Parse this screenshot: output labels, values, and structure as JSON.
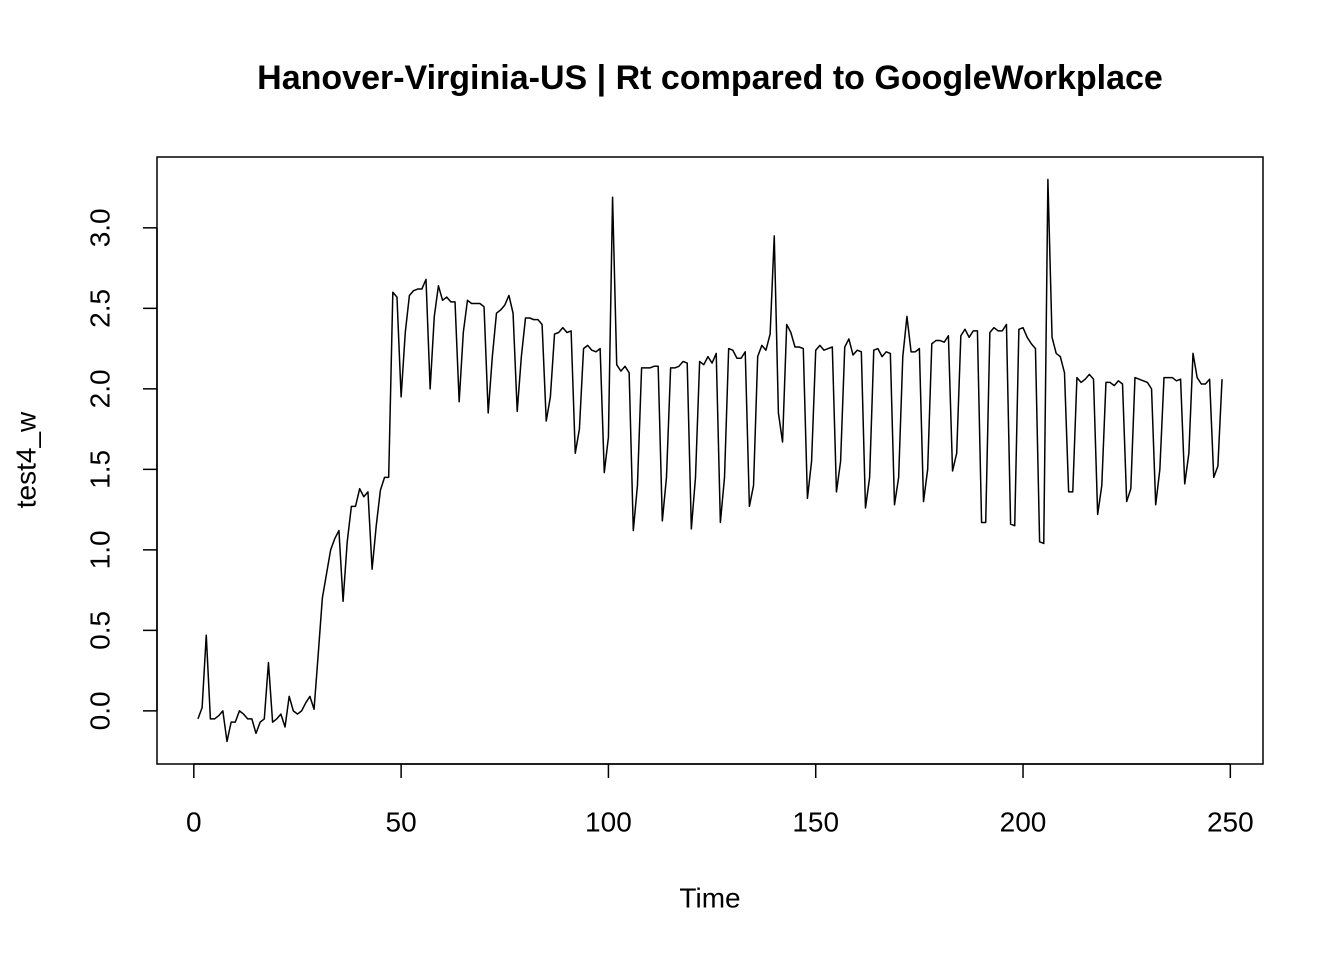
{
  "chart_data": {
    "type": "line",
    "title": "Hanover-Virginia-US | Rt compared to GoogleWorkplace",
    "x_label": "Time",
    "y_label": "test4_w",
    "color": "#000000",
    "xlim": [
      -8.88,
      257.88
    ],
    "ylim": [
      -0.33,
      3.44
    ],
    "xticks": [
      0,
      50,
      100,
      150,
      200,
      250
    ],
    "yticks": [
      {
        "value": 0,
        "label": "0.0"
      },
      0.5,
      {
        "value": 1,
        "label": "1.0"
      },
      1.5,
      {
        "value": 2,
        "label": "2.0"
      },
      2.5,
      {
        "value": 3,
        "label": "3.0"
      }
    ],
    "x": [
      1,
      2,
      3,
      4,
      5,
      6,
      7,
      8,
      9,
      10,
      11,
      12,
      13,
      14,
      15,
      16,
      17,
      18,
      19,
      20,
      21,
      22,
      23,
      24,
      25,
      26,
      27,
      28,
      29,
      30,
      31,
      32,
      33,
      34,
      35,
      36,
      37,
      38,
      39,
      40,
      41,
      42,
      43,
      44,
      45,
      46,
      47,
      48,
      49,
      50,
      51,
      52,
      53,
      54,
      55,
      56,
      57,
      58,
      59,
      60,
      61,
      62,
      63,
      64,
      65,
      66,
      67,
      68,
      69,
      70,
      71,
      72,
      73,
      74,
      75,
      76,
      77,
      78,
      79,
      80,
      81,
      82,
      83,
      84,
      85,
      86,
      87,
      88,
      89,
      90,
      91,
      92,
      93,
      94,
      95,
      96,
      97,
      98,
      99,
      100,
      101,
      102,
      103,
      104,
      105,
      106,
      107,
      108,
      109,
      110,
      111,
      112,
      113,
      114,
      115,
      116,
      117,
      118,
      119,
      120,
      121,
      122,
      123,
      124,
      125,
      126,
      127,
      128,
      129,
      130,
      131,
      132,
      133,
      134,
      135,
      136,
      137,
      138,
      139,
      140,
      141,
      142,
      143,
      144,
      145,
      146,
      147,
      148,
      149,
      150,
      151,
      152,
      153,
      154,
      155,
      156,
      157,
      158,
      159,
      160,
      161,
      162,
      163,
      164,
      165,
      166,
      167,
      168,
      169,
      170,
      171,
      172,
      173,
      174,
      175,
      176,
      177,
      178,
      179,
      180,
      181,
      182,
      183,
      184,
      185,
      186,
      187,
      188,
      189,
      190,
      191,
      192,
      193,
      194,
      195,
      196,
      197,
      198,
      199,
      200,
      201,
      202,
      203,
      204,
      205,
      206,
      207,
      208,
      209,
      210,
      211,
      212,
      213,
      214,
      215,
      216,
      217,
      218,
      219,
      220,
      221,
      222,
      223,
      224,
      225,
      226,
      227,
      228,
      229,
      230,
      231,
      232,
      233,
      234,
      235,
      236,
      237,
      238,
      239,
      240,
      241,
      242,
      243,
      244,
      245,
      246,
      247,
      248
    ],
    "values": [
      -0.05,
      0.02,
      0.47,
      -0.05,
      -0.05,
      -0.03,
      0.0,
      -0.19,
      -0.07,
      -0.07,
      0.0,
      -0.02,
      -0.05,
      -0.05,
      -0.14,
      -0.07,
      -0.05,
      0.3,
      -0.07,
      -0.05,
      -0.02,
      -0.1,
      0.09,
      0.0,
      -0.02,
      0.0,
      0.05,
      0.09,
      0.01,
      0.35,
      0.7,
      0.85,
      1.0,
      1.07,
      1.12,
      0.68,
      1.05,
      1.27,
      1.27,
      1.38,
      1.33,
      1.36,
      0.88,
      1.15,
      1.37,
      1.45,
      1.45,
      2.6,
      2.57,
      1.95,
      2.35,
      2.58,
      2.61,
      2.62,
      2.62,
      2.68,
      2.0,
      2.45,
      2.64,
      2.55,
      2.57,
      2.54,
      2.54,
      1.92,
      2.35,
      2.55,
      2.53,
      2.53,
      2.53,
      2.51,
      1.85,
      2.2,
      2.47,
      2.49,
      2.52,
      2.58,
      2.47,
      1.86,
      2.2,
      2.44,
      2.44,
      2.43,
      2.43,
      2.4,
      1.8,
      1.95,
      2.34,
      2.35,
      2.38,
      2.35,
      2.36,
      1.6,
      1.75,
      2.25,
      2.27,
      2.24,
      2.23,
      2.25,
      1.48,
      1.7,
      3.19,
      2.15,
      2.11,
      2.14,
      2.1,
      1.12,
      1.4,
      2.13,
      2.13,
      2.13,
      2.14,
      2.14,
      1.18,
      1.45,
      2.13,
      2.13,
      2.14,
      2.17,
      2.16,
      1.13,
      1.45,
      2.17,
      2.15,
      2.2,
      2.16,
      2.22,
      1.17,
      1.45,
      2.25,
      2.24,
      2.19,
      2.19,
      2.23,
      1.27,
      1.4,
      2.2,
      2.27,
      2.24,
      2.34,
      2.95,
      1.85,
      1.67,
      2.4,
      2.35,
      2.26,
      2.26,
      2.25,
      1.32,
      1.55,
      2.24,
      2.27,
      2.24,
      2.25,
      2.26,
      1.36,
      1.55,
      2.26,
      2.31,
      2.21,
      2.24,
      2.23,
      1.26,
      1.45,
      2.24,
      2.25,
      2.2,
      2.23,
      2.22,
      1.28,
      1.45,
      2.2,
      2.45,
      2.23,
      2.23,
      2.25,
      1.3,
      1.5,
      2.28,
      2.3,
      2.3,
      2.29,
      2.33,
      1.49,
      1.6,
      2.33,
      2.37,
      2.32,
      2.36,
      2.36,
      1.17,
      1.17,
      2.35,
      2.38,
      2.36,
      2.36,
      2.4,
      1.16,
      1.15,
      2.37,
      2.38,
      2.32,
      2.28,
      2.25,
      1.05,
      1.04,
      3.3,
      2.32,
      2.22,
      2.2,
      2.1,
      1.36,
      1.36,
      2.07,
      2.04,
      2.06,
      2.09,
      2.06,
      1.22,
      1.4,
      2.04,
      2.04,
      2.02,
      2.05,
      2.03,
      1.3,
      1.38,
      2.07,
      2.06,
      2.05,
      2.04,
      2.0,
      1.28,
      1.5,
      2.07,
      2.07,
      2.07,
      2.05,
      2.06,
      1.41,
      1.6,
      2.22,
      2.07,
      2.03,
      2.03,
      2.06,
      1.45,
      1.52,
      2.06
    ]
  }
}
